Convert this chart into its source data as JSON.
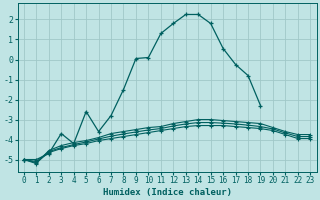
{
  "xlabel": "Humidex (Indice chaleur)",
  "bg_color": "#c0e4e4",
  "grid_color": "#a0c8c8",
  "line_color": "#006060",
  "x_values": [
    0,
    1,
    2,
    3,
    4,
    5,
    6,
    7,
    8,
    9,
    10,
    11,
    12,
    13,
    14,
    15,
    16,
    17,
    18,
    19,
    20,
    21,
    22,
    23
  ],
  "line1": [
    -5.0,
    -5.0,
    -4.7,
    -3.7,
    -4.2,
    -2.6,
    -3.6,
    -2.8,
    -1.5,
    0.05,
    0.1,
    1.3,
    1.8,
    2.25,
    2.25,
    1.8,
    0.55,
    -0.25,
    -0.8,
    -2.3,
    null,
    null,
    null,
    null
  ],
  "line1b": [
    null,
    null,
    null,
    null,
    null,
    null,
    null,
    null,
    null,
    null,
    null,
    null,
    null,
    null,
    2.25,
    1.8,
    0.55,
    -0.25,
    -0.8,
    -2.3,
    null,
    -3.7,
    -4.0,
    -3.8
  ],
  "line2": [
    -5.0,
    -5.2,
    -4.55,
    -4.3,
    -4.15,
    -4.05,
    -3.9,
    -3.7,
    -3.6,
    -3.5,
    -3.4,
    -3.35,
    -3.2,
    -3.1,
    -3.0,
    -3.0,
    -3.05,
    -3.1,
    -3.15,
    -3.2,
    -3.4,
    -3.6,
    -3.75,
    -3.75
  ],
  "line3": [
    -5.0,
    -5.15,
    -4.65,
    -4.45,
    -4.3,
    -4.2,
    -4.05,
    -3.95,
    -3.85,
    -3.75,
    -3.65,
    -3.55,
    -3.45,
    -3.35,
    -3.3,
    -3.3,
    -3.3,
    -3.35,
    -3.4,
    -3.45,
    -3.55,
    -3.75,
    -3.95,
    -3.95
  ],
  "line4": [
    -5.0,
    -5.1,
    -4.6,
    -4.4,
    -4.25,
    -4.12,
    -3.97,
    -3.83,
    -3.72,
    -3.62,
    -3.52,
    -3.45,
    -3.32,
    -3.22,
    -3.15,
    -3.15,
    -3.18,
    -3.22,
    -3.28,
    -3.35,
    -3.47,
    -3.67,
    -3.85,
    -3.85
  ],
  "ylim": [
    -5.6,
    2.8
  ],
  "xlim": [
    -0.5,
    23.5
  ],
  "yticks": [
    -5,
    -4,
    -3,
    -2,
    -1,
    0,
    1,
    2
  ],
  "xticks": [
    0,
    1,
    2,
    3,
    4,
    5,
    6,
    7,
    8,
    9,
    10,
    11,
    12,
    13,
    14,
    15,
    16,
    17,
    18,
    19,
    20,
    21,
    22,
    23
  ],
  "xlabel_fontsize": 6.5,
  "tick_fontsize": 5.5
}
